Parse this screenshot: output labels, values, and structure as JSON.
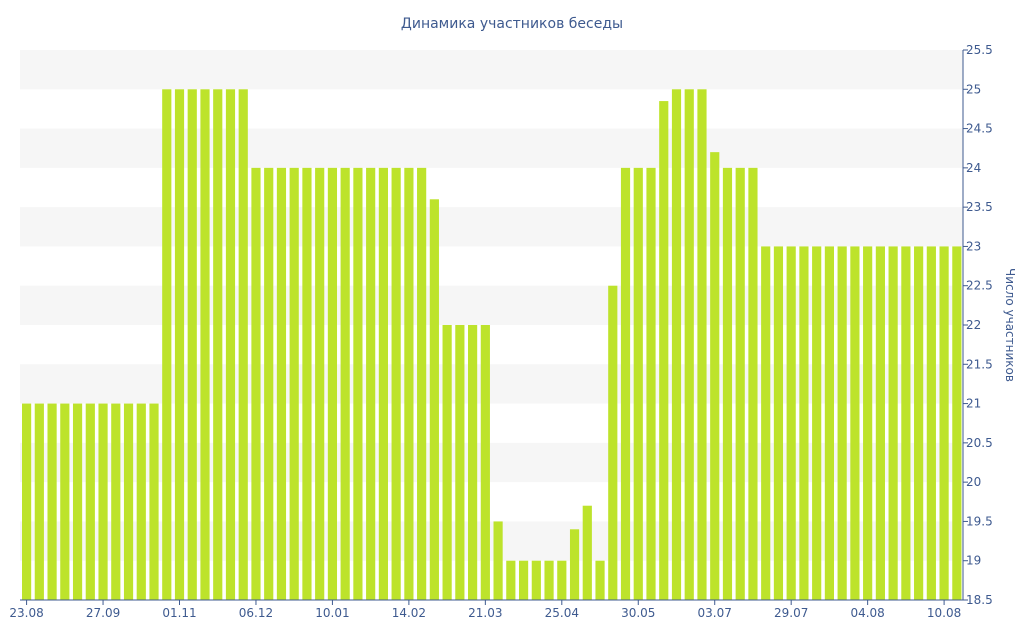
{
  "chart_data": {
    "type": "bar",
    "title": "Динамика участников беседы",
    "ylabel": "Число участников",
    "xlabel": "",
    "ylim": [
      18.5,
      25.5
    ],
    "y_ticks": [
      "18.5",
      "19",
      "19.5",
      "20",
      "20.5",
      "21",
      "21.5",
      "22",
      "22.5",
      "23",
      "23.5",
      "24",
      "24.5",
      "25",
      "25.5"
    ],
    "x_ticks": [
      {
        "label": "23.08",
        "index": 0
      },
      {
        "label": "27.09",
        "index": 6
      },
      {
        "label": "01.11",
        "index": 12
      },
      {
        "label": "06.12",
        "index": 18
      },
      {
        "label": "10.01",
        "index": 24
      },
      {
        "label": "14.02",
        "index": 30
      },
      {
        "label": "21.03",
        "index": 36
      },
      {
        "label": "25.04",
        "index": 42
      },
      {
        "label": "30.05",
        "index": 48
      },
      {
        "label": "03.07",
        "index": 54
      },
      {
        "label": "29.07",
        "index": 60
      },
      {
        "label": "04.08",
        "index": 66
      },
      {
        "label": "10.08",
        "index": 72
      }
    ],
    "values": [
      21,
      21,
      21,
      21,
      21,
      21,
      21,
      21,
      21,
      21,
      21,
      25,
      25,
      25,
      25,
      25,
      25,
      25,
      24,
      24,
      24,
      24,
      24,
      24,
      24,
      24,
      24,
      24,
      24,
      24,
      24,
      24,
      23.6,
      22,
      22,
      22,
      22,
      19.5,
      19,
      19,
      19,
      19,
      19,
      19.4,
      19.7,
      19,
      22.5,
      24,
      24,
      24,
      24.85,
      25,
      25,
      25,
      24.2,
      24,
      24,
      24,
      23,
      23,
      23,
      23,
      23,
      23,
      23,
      23,
      23,
      23,
      23,
      23,
      23,
      23,
      23,
      23
    ],
    "bar_color": "#bde32b",
    "grid": "alternating horizontal bands",
    "y_axis_side": "right"
  }
}
